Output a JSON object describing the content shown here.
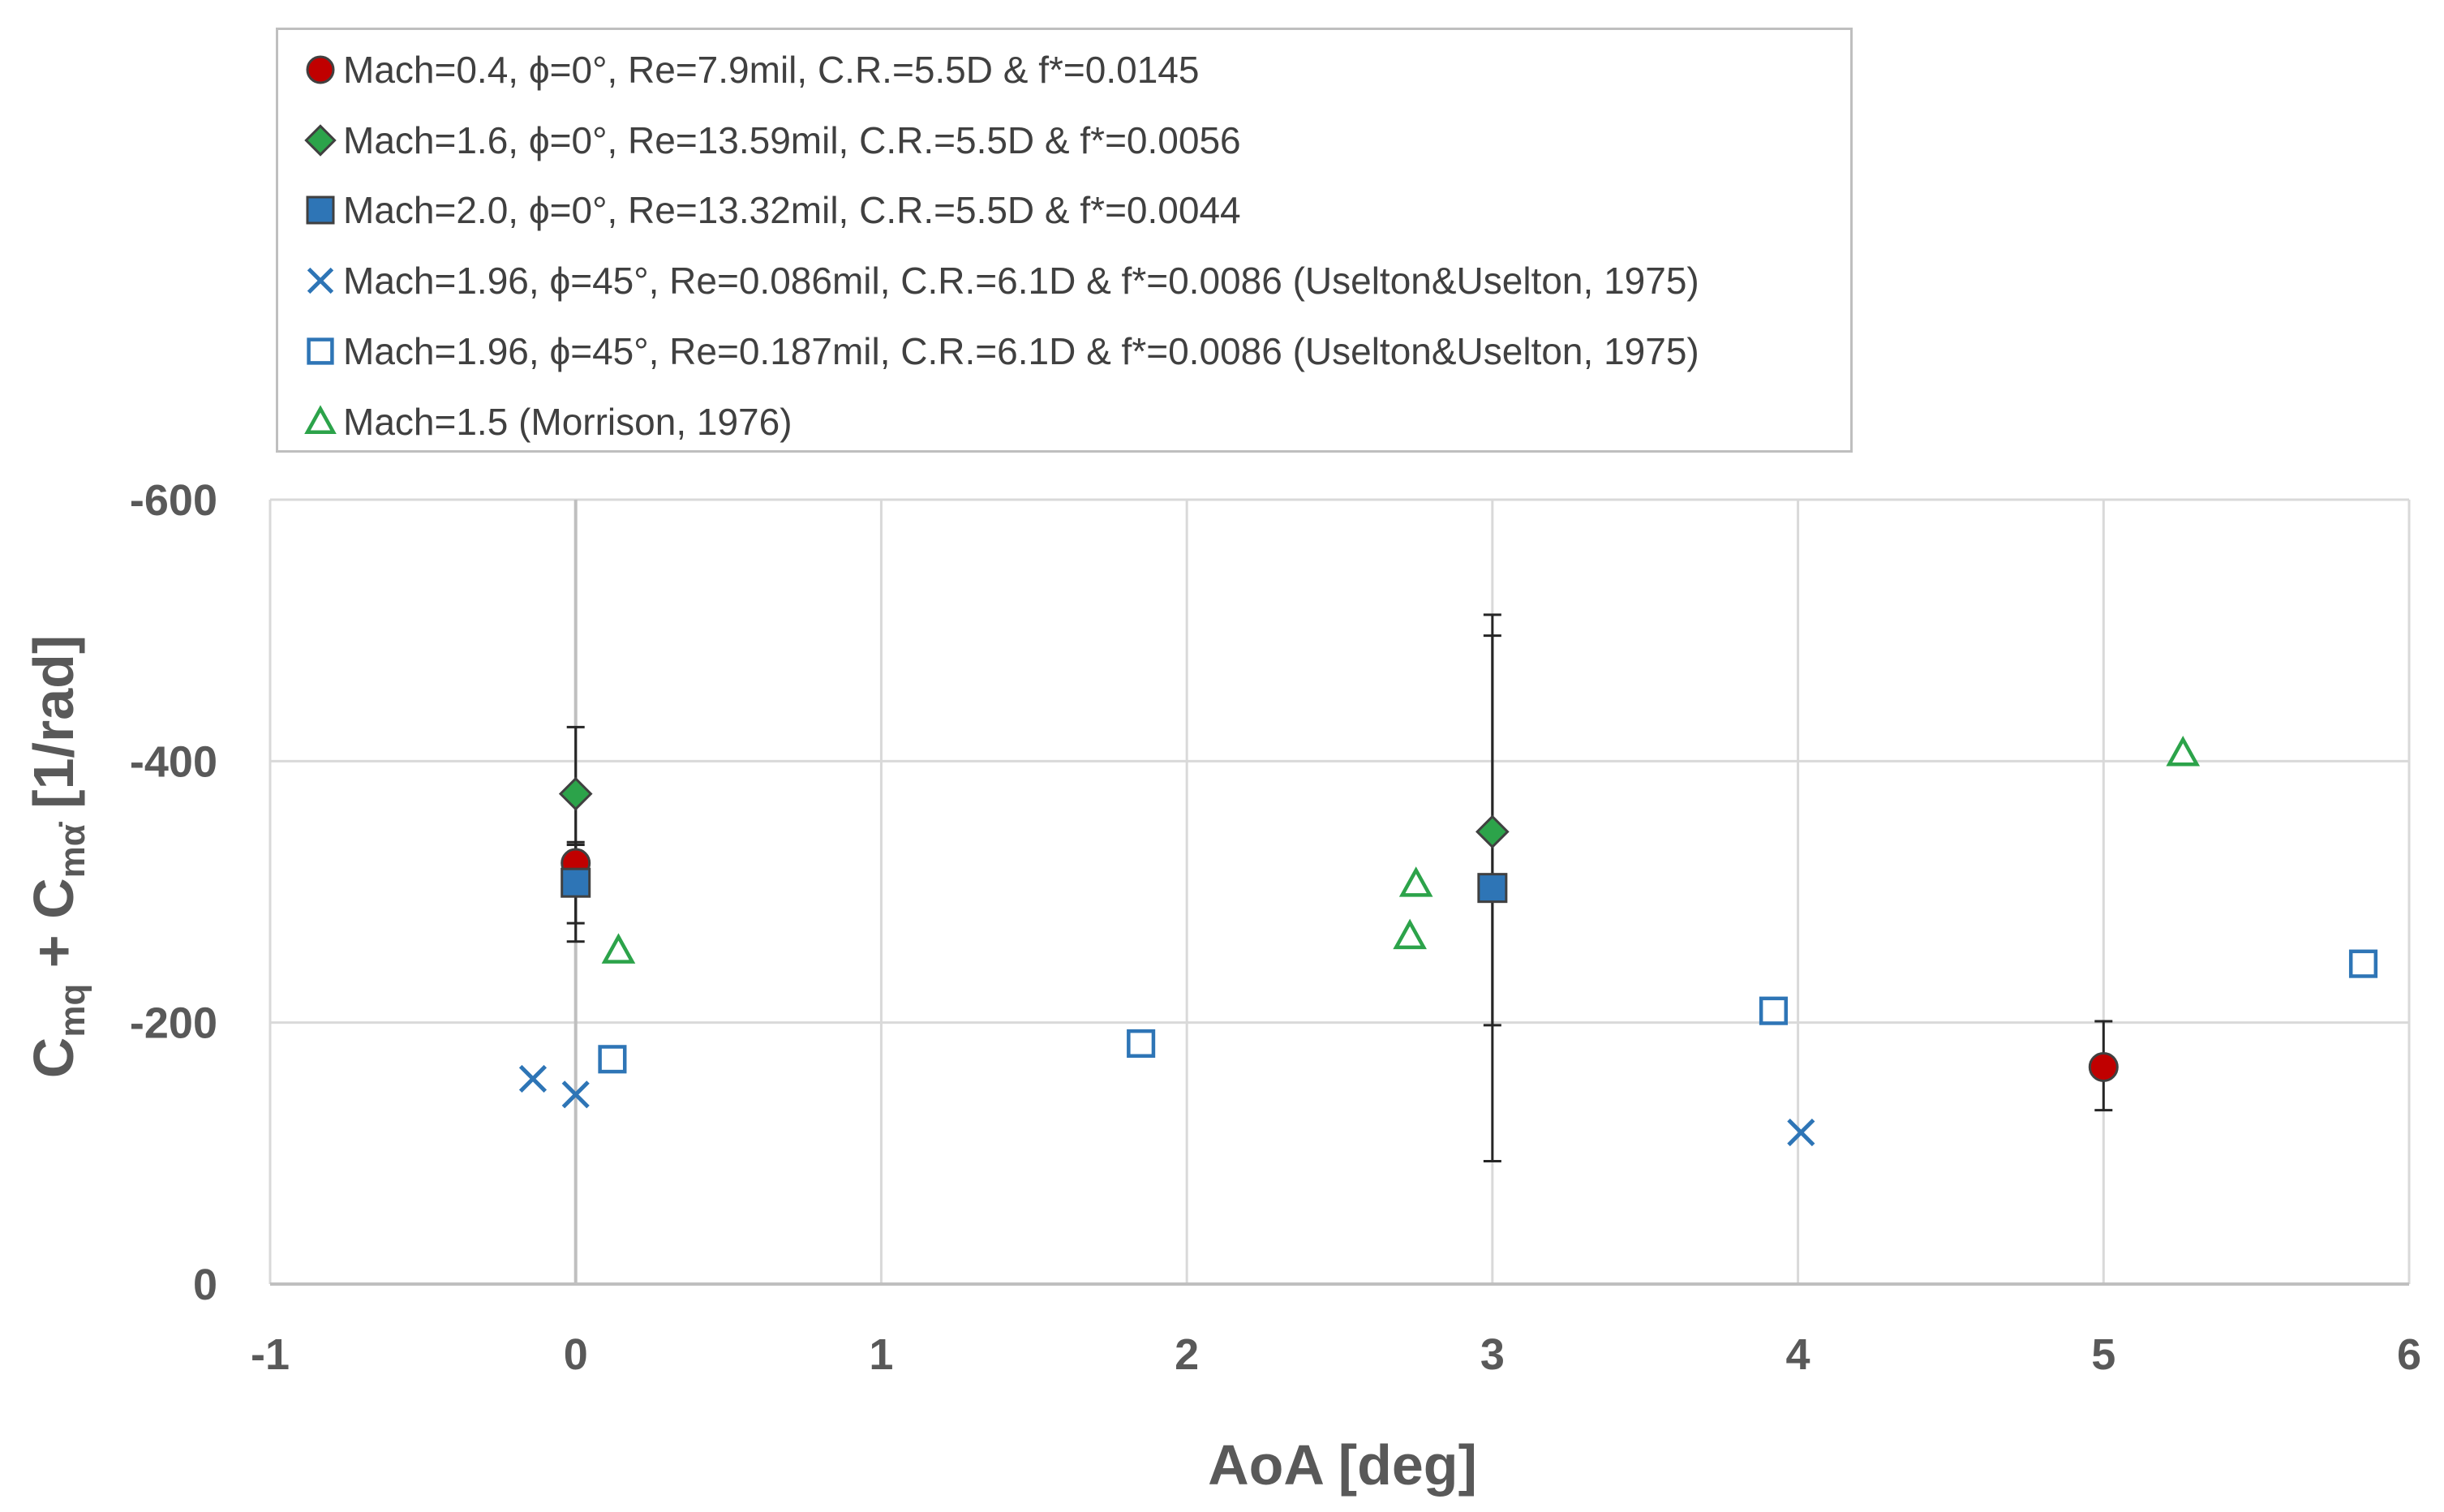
{
  "chart_data": {
    "type": "scatter",
    "title": "",
    "xlabel": "AoA [deg]",
    "ylabel": {
      "parts": [
        {
          "text": "C",
          "style": "normal"
        },
        {
          "text": "mq",
          "style": "sub"
        },
        {
          "text": " + C",
          "style": "normal"
        },
        {
          "text": "mα̇",
          "style": "sub"
        },
        {
          "text": " [1/rad]",
          "style": "normal"
        }
      ]
    },
    "xlim": [
      -1,
      6
    ],
    "ylim": [
      0,
      -600
    ],
    "y_inverted": true,
    "xticks": [
      -1,
      0,
      1,
      2,
      3,
      4,
      5,
      6
    ],
    "yticks": [
      0,
      -200,
      -400,
      -600
    ],
    "grid": true,
    "legend_position": "top",
    "series": [
      {
        "name": "Mach=0.4, ϕ=0°, Re=7.9mil, C.R.=5.5D & f*=0.0145",
        "marker": "circle",
        "fill": "#c00000",
        "stroke": "#404040",
        "points": [
          {
            "x": 0,
            "y": -322,
            "err_low": -262,
            "err_high": -338
          },
          {
            "x": 5,
            "y": -166,
            "err_low": -133,
            "err_high": -201
          }
        ]
      },
      {
        "name": "Mach=1.6, ϕ=0°, Re=13.59mil, C.R.=5.5D & f*=0.0056",
        "marker": "diamond",
        "fill": "#2ca34a",
        "stroke": "#404040",
        "points": [
          {
            "x": 0,
            "y": -375,
            "err_low": -322,
            "err_high": -426
          },
          {
            "x": 3,
            "y": -346,
            "err_low": -198,
            "err_high": -496
          }
        ]
      },
      {
        "name": "Mach=2.0, ϕ=0°, Re=13.32mil, C.R.=5.5D & f*=0.0044",
        "marker": "square",
        "fill": "#2e75b6",
        "stroke": "#404040",
        "points": [
          {
            "x": 0,
            "y": -307,
            "err_low": -276,
            "err_high": -336
          },
          {
            "x": 3,
            "y": -303,
            "err_low": -94,
            "err_high": -512
          }
        ]
      },
      {
        "name": "Mach=1.96, ϕ=45°, Re=0.086mil, C.R.=6.1D & f*=0.0086 (Uselton&Uselton, 1975)",
        "marker": "x",
        "fill": "none",
        "stroke": "#2e75b6",
        "points": [
          {
            "x": -0.14,
            "y": -157
          },
          {
            "x": 0,
            "y": -145
          },
          {
            "x": 4.01,
            "y": -116
          }
        ]
      },
      {
        "name": "Mach=1.96, ϕ=45°, Re=0.187mil, C.R.=6.1D & f*=0.0086 (Uselton&Uselton, 1975)",
        "marker": "open-square",
        "fill": "none",
        "stroke": "#2e75b6",
        "points": [
          {
            "x": 0.12,
            "y": -172
          },
          {
            "x": 1.85,
            "y": -184
          },
          {
            "x": 3.92,
            "y": -209
          },
          {
            "x": 5.85,
            "y": -245
          }
        ]
      },
      {
        "name": "Mach=1.5 (Morrison, 1976)",
        "marker": "open-triangle",
        "fill": "none",
        "stroke": "#2ca34a",
        "points": [
          {
            "x": 0.14,
            "y": -255
          },
          {
            "x": 2.73,
            "y": -266
          },
          {
            "x": 2.75,
            "y": -306
          },
          {
            "x": 5.26,
            "y": -406
          }
        ]
      }
    ]
  }
}
